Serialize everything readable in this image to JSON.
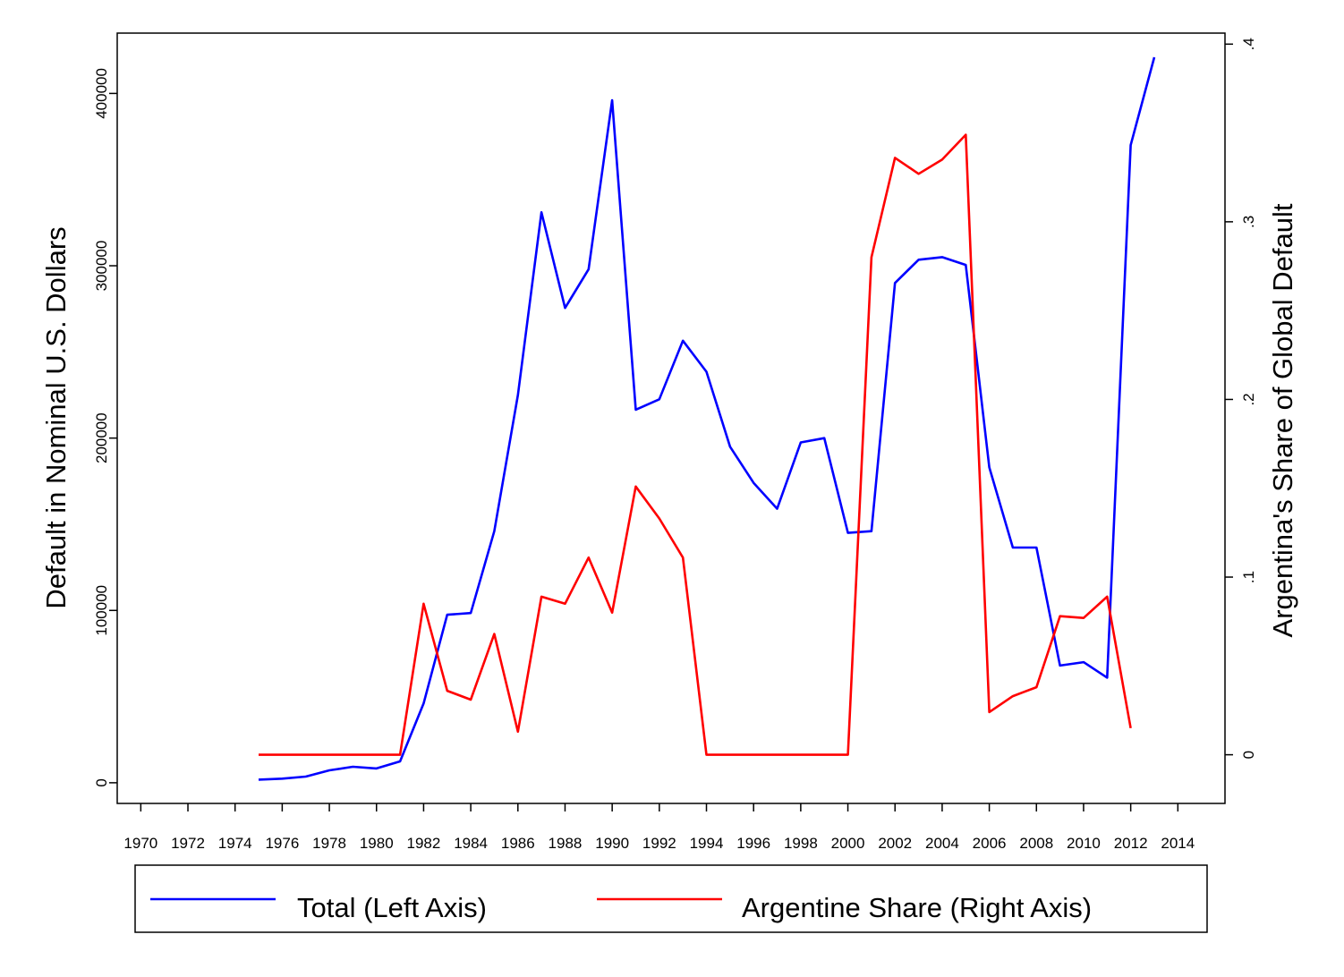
{
  "chart_data": {
    "type": "line",
    "title": "",
    "xlabel": "",
    "ylabel_left": "Default in Nominal U.S. Dollars",
    "ylabel_right": "Argentina's Share of Global Default",
    "xlim": [
      1969,
      2016
    ],
    "ylim_left": [
      -12000,
      435000
    ],
    "ylim_right": [
      -0.0274,
      0.4062
    ],
    "x_ticks": [
      1970,
      1972,
      1974,
      1976,
      1978,
      1980,
      1982,
      1984,
      1986,
      1988,
      1990,
      1992,
      1994,
      1996,
      1998,
      2000,
      2002,
      2004,
      2006,
      2008,
      2010,
      2012,
      2014
    ],
    "x_tick_labels": [
      "1970",
      "1972",
      "1974",
      "1976",
      "1978",
      "1980",
      "1982",
      "1984",
      "1986",
      "1988",
      "1990",
      "1992",
      "1994",
      "1996",
      "1998",
      "2000",
      "2002",
      "2004",
      "2006",
      "2008",
      "2010",
      "2012",
      "2014"
    ],
    "y_left_ticks": [
      0,
      100000,
      200000,
      300000,
      400000
    ],
    "y_left_tick_labels": [
      "0",
      "100000",
      "200000",
      "300000",
      "400000"
    ],
    "y_right_ticks": [
      0,
      0.1,
      0.2,
      0.3,
      0.4
    ],
    "y_right_tick_labels": [
      "0",
      ".1",
      ".2",
      ".3",
      ".4"
    ],
    "grid": false,
    "legend_position": "bottom",
    "series": [
      {
        "name": "Total (Left Axis)",
        "axis": "left",
        "color": "#0000ff",
        "x": [
          1975,
          1976,
          1977,
          1978,
          1979,
          1980,
          1981,
          1982,
          1983,
          1984,
          1985,
          1986,
          1987,
          1988,
          1989,
          1990,
          1991,
          1992,
          1993,
          1994,
          1995,
          1996,
          1997,
          1998,
          1999,
          2000,
          2001,
          2002,
          2003,
          2004,
          2005,
          2006,
          2007,
          2008,
          2009,
          2010,
          2011,
          2012,
          2013
        ],
        "values": [
          1800,
          2400,
          3600,
          7200,
          9300,
          8300,
          12400,
          46000,
          97500,
          98500,
          146000,
          225000,
          331000,
          275500,
          298000,
          396000,
          216500,
          222500,
          256500,
          238500,
          195000,
          174000,
          159000,
          197500,
          200000,
          145000,
          146000,
          290000,
          303500,
          305000,
          300500,
          183000,
          136500,
          136500,
          68000,
          70000,
          61000,
          370000,
          421000
        ]
      },
      {
        "name": "Argentine Share (Right Axis)",
        "axis": "right",
        "color": "#ff0000",
        "x": [
          1975,
          1976,
          1977,
          1978,
          1979,
          1980,
          1981,
          1982,
          1983,
          1984,
          1985,
          1986,
          1987,
          1988,
          1989,
          1990,
          1991,
          1992,
          1993,
          1994,
          1995,
          1996,
          1997,
          1998,
          1999,
          2000,
          2001,
          2002,
          2003,
          2004,
          2005,
          2006,
          2007,
          2008,
          2009,
          2010,
          2011,
          2012
        ],
        "values": [
          0,
          0,
          0,
          0,
          0,
          0,
          0,
          0.085,
          0.036,
          0.031,
          0.068,
          0.013,
          0.089,
          0.085,
          0.111,
          0.08,
          0.151,
          0.133,
          0.111,
          0,
          0,
          0,
          0,
          0,
          0,
          0,
          0.28,
          0.336,
          0.327,
          0.335,
          0.349,
          0.024,
          0.033,
          0.038,
          0.078,
          0.077,
          0.089,
          0.015
        ]
      }
    ]
  }
}
